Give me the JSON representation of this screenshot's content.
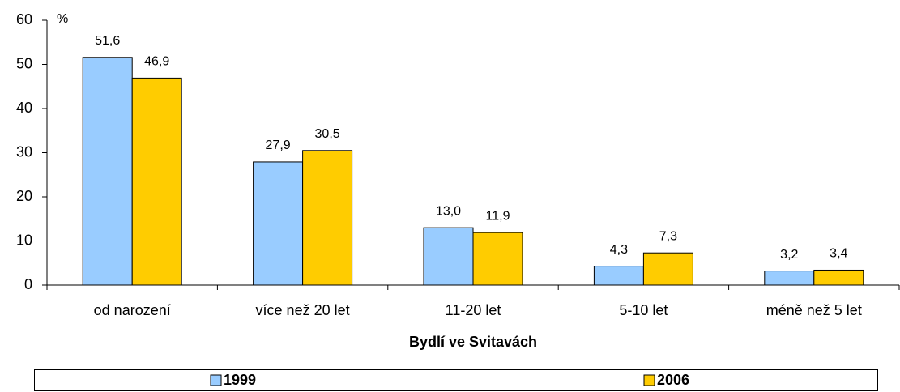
{
  "chart_data": {
    "type": "bar",
    "ylabel": "%",
    "xlabel": "Bydlí ve Svitavách",
    "categories": [
      "od narození",
      "více než 20 let",
      "11-20 let",
      "5-10 let",
      "méně než 5 let"
    ],
    "series": [
      {
        "name": "1999",
        "color": "#99ccff",
        "values": [
          51.6,
          27.9,
          13.0,
          4.3,
          3.2
        ],
        "value_labels": [
          "51,6",
          "27,9",
          "13,0",
          "4,3",
          "3,2"
        ]
      },
      {
        "name": "2006",
        "color": "#ffcc00",
        "values": [
          46.9,
          30.5,
          11.9,
          7.3,
          3.4
        ],
        "value_labels": [
          "46,9",
          "30,5",
          "11,9",
          "7,3",
          "3,4"
        ]
      }
    ],
    "ylim": [
      0,
      60
    ],
    "yticks": [
      0,
      10,
      20,
      30,
      40,
      50,
      60
    ],
    "grid": false,
    "legend": "bottom"
  }
}
